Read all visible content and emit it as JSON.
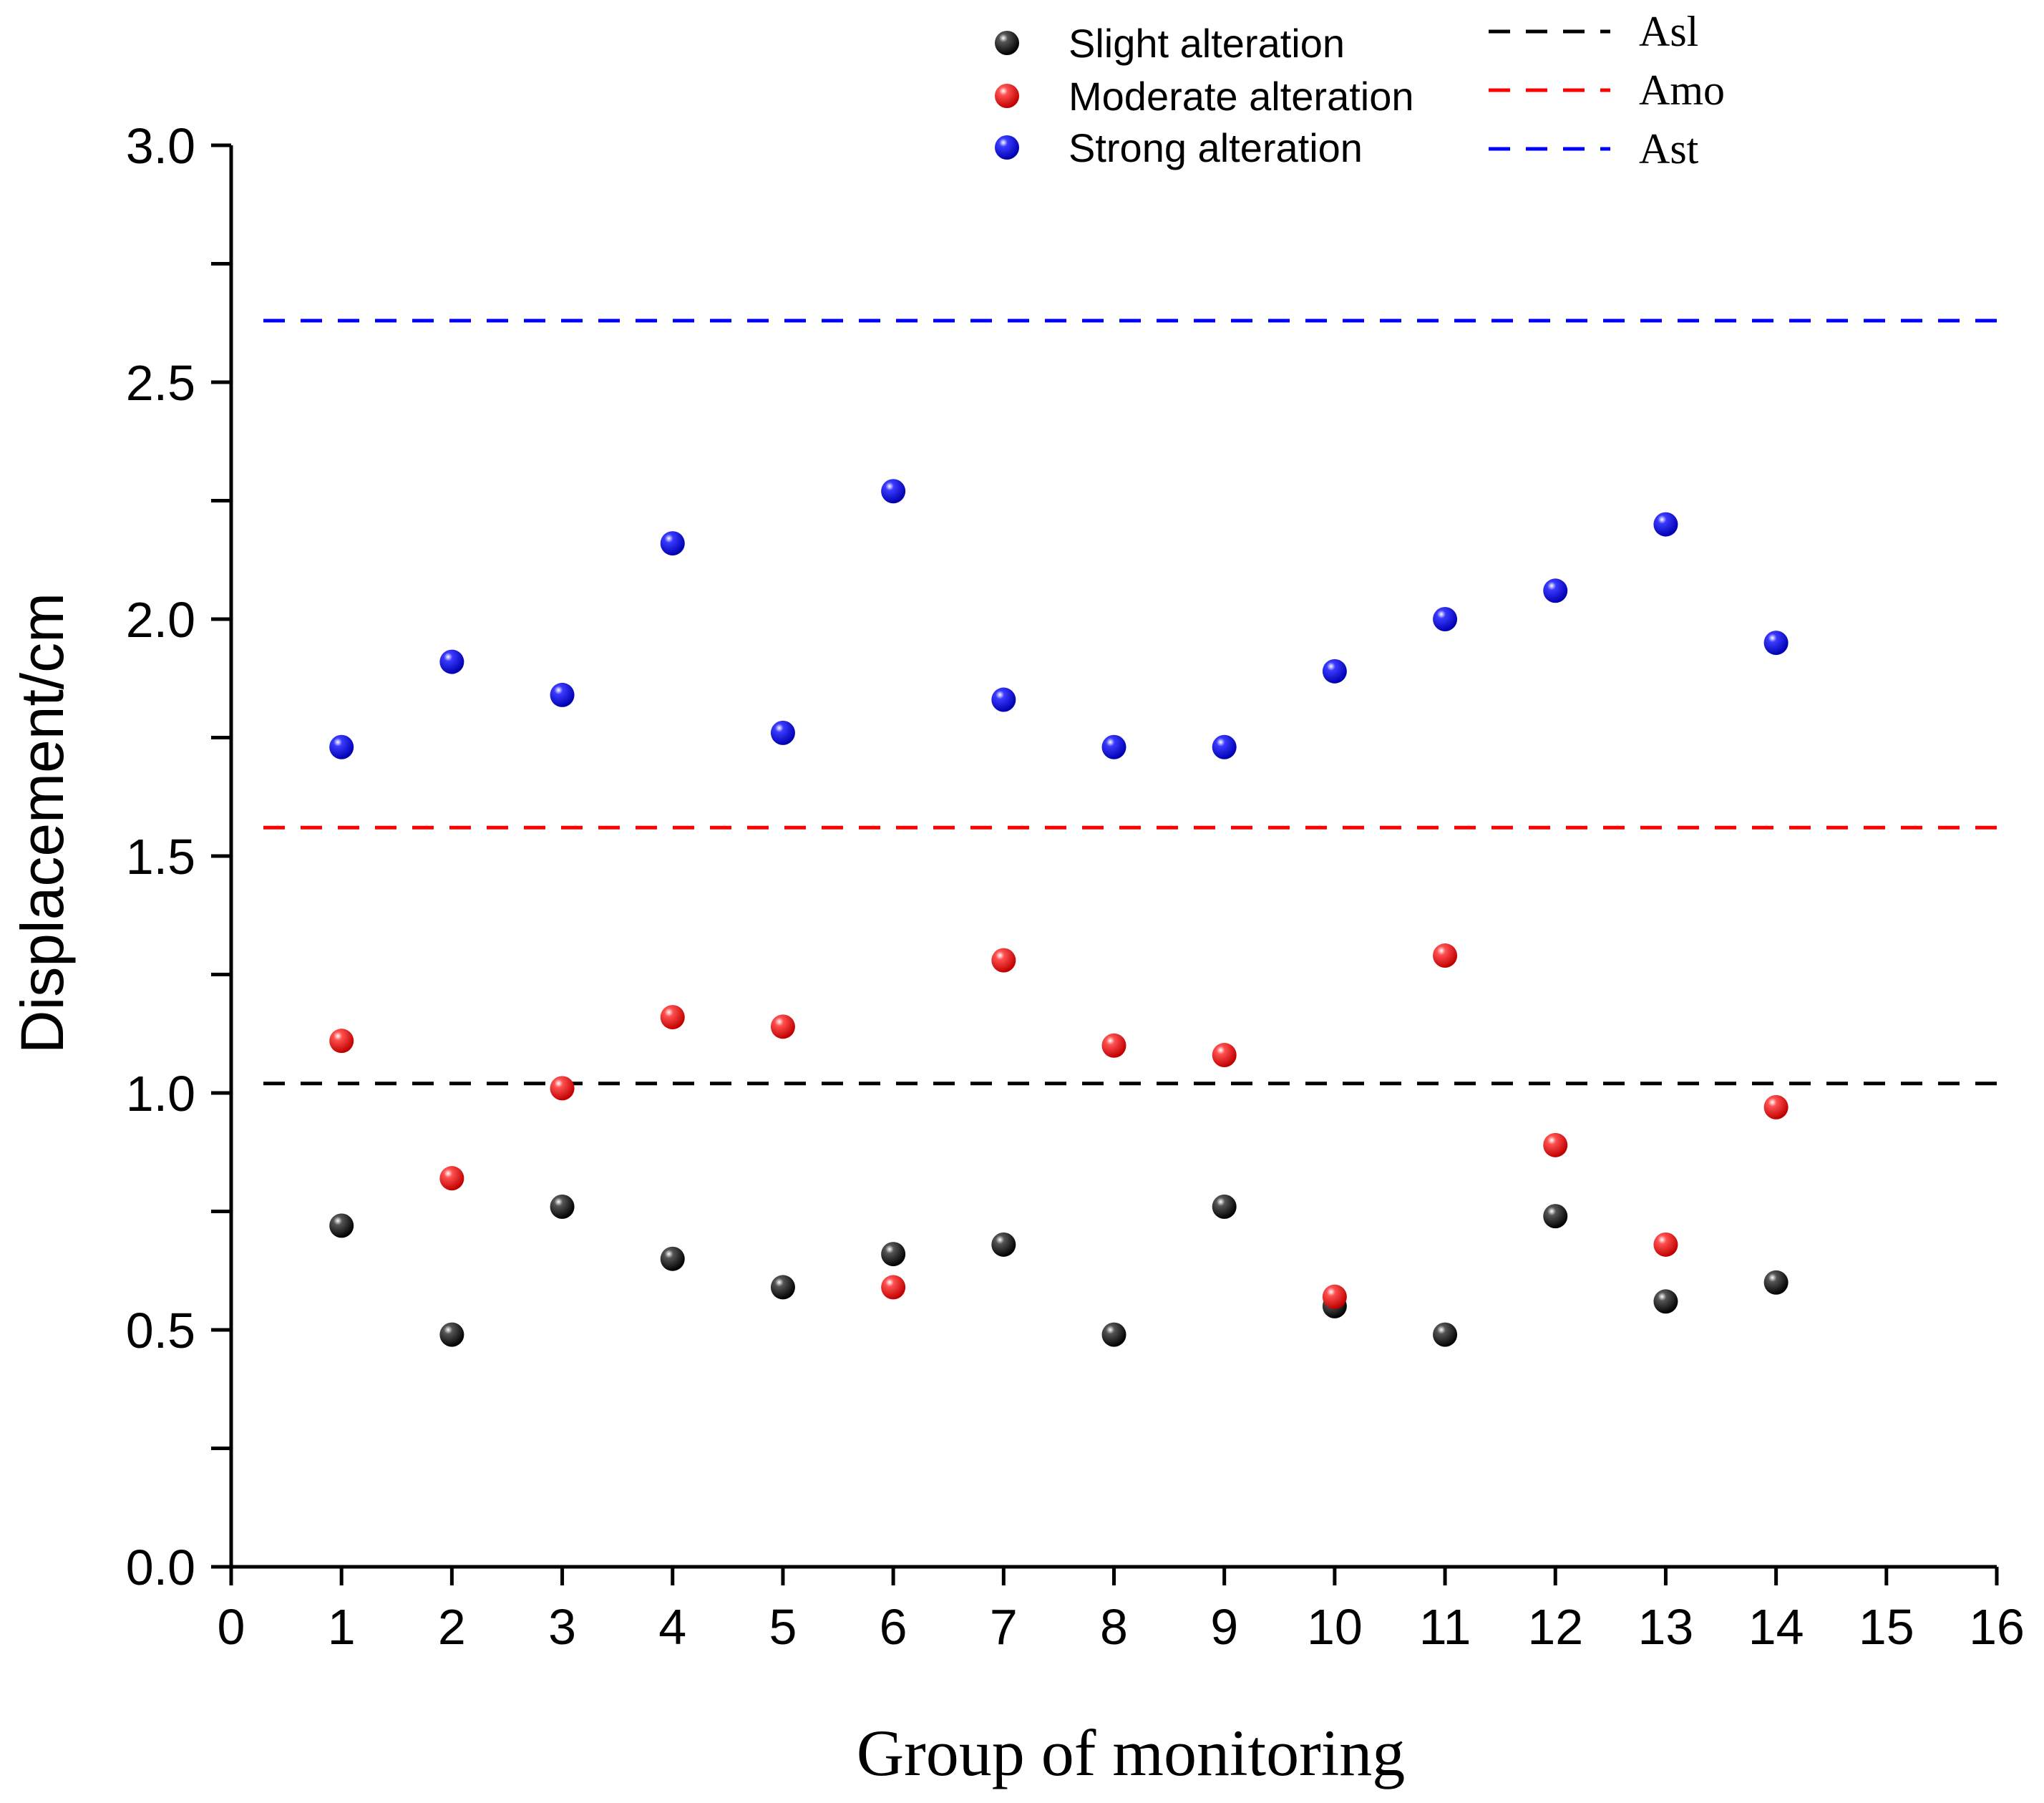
{
  "chart_data": {
    "type": "scatter",
    "title": "",
    "xlabel": "Group of monitoring",
    "ylabel": "Displacement/cm",
    "xlim": [
      0,
      16
    ],
    "ylim": [
      0,
      3.0
    ],
    "x_ticks": [
      "0",
      "1",
      "2",
      "3",
      "4",
      "5",
      "6",
      "7",
      "8",
      "9",
      "10",
      "11",
      "12",
      "13",
      "14",
      "15",
      "16"
    ],
    "y_ticks": [
      "0.0",
      "0.5",
      "1.0",
      "1.5",
      "2.0",
      "2.5",
      "3.0"
    ],
    "grid": false,
    "legend_position": "top-right",
    "x": [
      1,
      2,
      3,
      4,
      5,
      6,
      7,
      8,
      9,
      10,
      11,
      12,
      13,
      14
    ],
    "series": [
      {
        "name": "Slight alteration",
        "color": "#000000",
        "values": [
          0.72,
          0.49,
          0.76,
          0.65,
          0.59,
          0.66,
          0.68,
          0.49,
          0.76,
          0.55,
          0.49,
          0.74,
          0.56,
          0.6
        ]
      },
      {
        "name": "Moderate alteration",
        "color": "#ff0000",
        "values": [
          1.11,
          0.82,
          1.01,
          1.16,
          1.14,
          0.59,
          1.28,
          1.1,
          1.08,
          0.57,
          1.29,
          0.89,
          0.68,
          0.97
        ]
      },
      {
        "name": "Strong alteration",
        "color": "#0000ff",
        "values": [
          1.73,
          1.91,
          1.84,
          2.16,
          1.76,
          2.27,
          1.83,
          1.73,
          1.73,
          1.89,
          2.0,
          2.06,
          2.2,
          1.95
        ]
      }
    ],
    "reference_lines": [
      {
        "name": "Asl",
        "color": "#000000",
        "y": 1.02
      },
      {
        "name": "Amo",
        "color": "#ff0000",
        "y": 1.56
      },
      {
        "name": "Ast",
        "color": "#0000ff",
        "y": 2.63
      }
    ]
  }
}
